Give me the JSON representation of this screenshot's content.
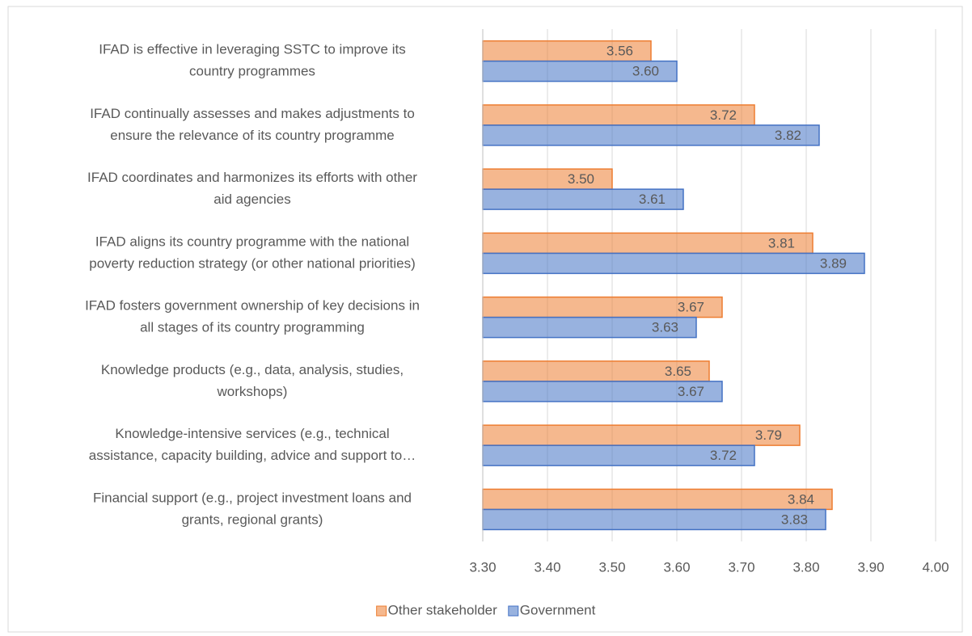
{
  "chart_data": {
    "type": "bar",
    "orientation": "horizontal",
    "categories": [
      [
        "IFAD is effective in leveraging SSTC to improve its",
        "country programmes"
      ],
      [
        "IFAD continually assesses and makes adjustments to",
        "ensure the relevance of its country programme"
      ],
      [
        "IFAD coordinates and harmonizes its efforts with other",
        "aid agencies"
      ],
      [
        "IFAD aligns its country programme with the national",
        "poverty reduction strategy (or other national priorities)"
      ],
      [
        "IFAD fosters government ownership of key decisions in",
        "all stages of its country programming"
      ],
      [
        "Knowledge products (e.g., data, analysis, studies,",
        "workshops)"
      ],
      [
        "Knowledge-intensive services (e.g., technical",
        "assistance, capacity building, advice and support to…"
      ],
      [
        "Financial support (e.g., project investment loans and",
        "grants, regional grants)"
      ]
    ],
    "series": [
      {
        "name": "Other stakeholder",
        "color": "#ed7d31",
        "values": [
          3.56,
          3.72,
          3.5,
          3.81,
          3.67,
          3.65,
          3.79,
          3.84
        ],
        "value_labels": [
          "3.56",
          "3.72",
          "3.50",
          "3.81",
          "3.67",
          "3.65",
          "3.79",
          "3.84"
        ]
      },
      {
        "name": "Government",
        "color": "#4472c4",
        "values": [
          3.6,
          3.82,
          3.61,
          3.89,
          3.63,
          3.67,
          3.72,
          3.83
        ],
        "value_labels": [
          "3.60",
          "3.82",
          "3.61",
          "3.89",
          "3.63",
          "3.67",
          "3.72",
          "3.83"
        ]
      }
    ],
    "xlim": [
      3.3,
      4.0
    ],
    "xticks": [
      {
        "value": 3.3,
        "label": "3.30"
      },
      {
        "value": 3.4,
        "label": "3.40"
      },
      {
        "value": 3.5,
        "label": "3.50"
      },
      {
        "value": 3.6,
        "label": "3.60"
      },
      {
        "value": 3.7,
        "label": "3.70"
      },
      {
        "value": 3.8,
        "label": "3.80"
      },
      {
        "value": 3.9,
        "label": "3.90"
      },
      {
        "value": 4.0,
        "label": "4.00"
      }
    ],
    "grid": true,
    "legend": "bottom"
  }
}
